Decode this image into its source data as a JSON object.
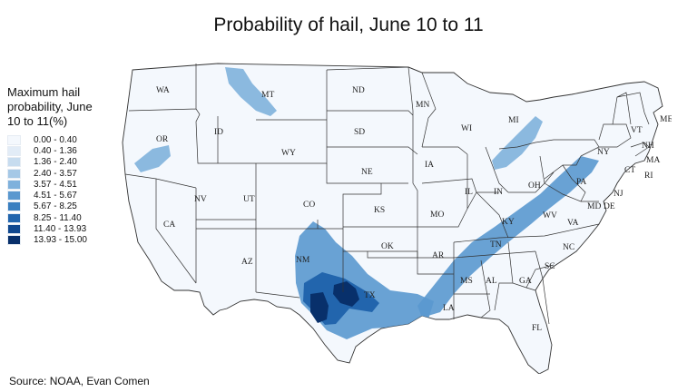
{
  "title": "Probability of hail, June 10 to 11",
  "legend": {
    "title": "Maximum hail probability, June 10 to 11(%)",
    "bins": [
      {
        "label": "0.00 - 0.40",
        "color": "#f4f8fd"
      },
      {
        "label": "0.40 - 1.36",
        "color": "#e2ecf7"
      },
      {
        "label": "1.36 - 2.40",
        "color": "#c7dcef"
      },
      {
        "label": "2.40 - 3.57",
        "color": "#a5c8e6"
      },
      {
        "label": "3.57 - 4.51",
        "color": "#7fb1dc"
      },
      {
        "label": "4.51 - 5.67",
        "color": "#5a98cf"
      },
      {
        "label": "5.67 - 8.25",
        "color": "#3a7fc0"
      },
      {
        "label": "8.25 - 11.40",
        "color": "#2265ad"
      },
      {
        "label": "11.40 - 13.93",
        "color": "#10488f"
      },
      {
        "label": "13.93 - 15.00",
        "color": "#08306b"
      }
    ]
  },
  "source": "Source: NOAA, Evan Comen",
  "map": {
    "base_color": "#f4f8fd",
    "states": [
      "WA",
      "MT",
      "ND",
      "MN",
      "ME",
      "OR",
      "ID",
      "SD",
      "WI",
      "MI",
      "VT",
      "NH",
      "NY",
      "MA",
      "WY",
      "IA",
      "CT",
      "RI",
      "NV",
      "UT",
      "NE",
      "IL",
      "IN",
      "OH",
      "PA",
      "NJ",
      "CA",
      "CO",
      "KS",
      "MO",
      "KY",
      "WV",
      "MD",
      "DE",
      "VA",
      "OK",
      "AR",
      "TN",
      "NC",
      "AZ",
      "NM",
      "SC",
      "GA",
      "AL",
      "MS",
      "TX",
      "LA",
      "FL"
    ]
  }
}
